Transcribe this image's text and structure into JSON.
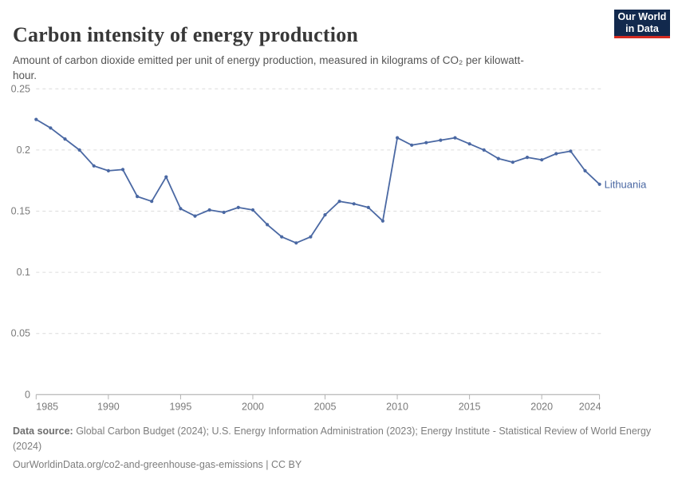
{
  "header": {
    "title": "Carbon intensity of energy production",
    "subtitle": "Amount of carbon dioxide emitted per unit of energy production, measured in kilograms of CO₂ per kilowatt-hour.",
    "logo": {
      "line1": "Our World",
      "line2": "in Data"
    }
  },
  "chart_data": {
    "type": "line",
    "title": "Carbon intensity of energy production",
    "xlabel": "",
    "ylabel": "",
    "grid": "horizontal-dashed",
    "legend": "end-of-line-label",
    "xlim": [
      1985,
      2024
    ],
    "ylim": [
      0,
      0.25
    ],
    "xticks": [
      1985,
      1990,
      1995,
      2000,
      2005,
      2010,
      2015,
      2020,
      2024
    ],
    "yticks": [
      0,
      0.05,
      0.1,
      0.15,
      0.2,
      0.25
    ],
    "series": [
      {
        "name": "Lithuania",
        "color": "#4a68a3",
        "x": [
          1985,
          1986,
          1987,
          1988,
          1989,
          1990,
          1991,
          1992,
          1993,
          1994,
          1995,
          1996,
          1997,
          1998,
          1999,
          2000,
          2001,
          2002,
          2003,
          2004,
          2005,
          2006,
          2007,
          2008,
          2009,
          2010,
          2011,
          2012,
          2013,
          2014,
          2015,
          2016,
          2017,
          2018,
          2019,
          2020,
          2021,
          2022,
          2023,
          2024
        ],
        "values": [
          0.225,
          0.218,
          0.209,
          0.2,
          0.187,
          0.183,
          0.184,
          0.162,
          0.158,
          0.178,
          0.152,
          0.146,
          0.151,
          0.149,
          0.153,
          0.151,
          0.139,
          0.129,
          0.124,
          0.129,
          0.147,
          0.158,
          0.156,
          0.153,
          0.142,
          0.21,
          0.204,
          0.206,
          0.208,
          0.21,
          0.205,
          0.2,
          0.193,
          0.19,
          0.194,
          0.192,
          0.197,
          0.199,
          0.183,
          0.172
        ]
      }
    ]
  },
  "colors": {
    "line": "#4a68a3",
    "gridline": "#dcdcdc",
    "axis_line": "#a6a6a6",
    "tick_mark": "#b3b3b3",
    "tick_label": "#7a7a7a",
    "title_text": "#383838",
    "subtitle_text": "#555555",
    "footer_text": "#7d7d7d",
    "logo_bg": "#12294d",
    "logo_red": "#d42b21"
  },
  "footer": {
    "source_label": "Data source:",
    "source_text": " Global Carbon Budget (2024); U.S. Energy Information Administration (2023); Energy Institute - Statistical Review of World Energy (2024)",
    "link": "OurWorldinData.org/co2-and-greenhouse-gas-emissions",
    "license": " | CC BY"
  }
}
